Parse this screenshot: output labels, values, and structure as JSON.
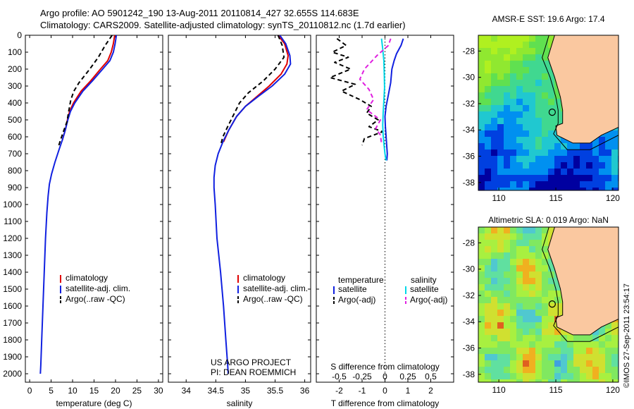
{
  "title_line1": "Argo profile: AO 5901242_190 13-Aug-2011 20110814_427 32.655S 114.683E",
  "title_line2": "Climatology: CARS2009. Satellite-adjusted climatology: synTS_20110812.nc (1.7d earlier)",
  "project_line1": "US ARGO PROJECT",
  "project_line2": "PI: DEAN ROEMMICH",
  "footer_stamp": "©IMOS 27-Sep-2011 23:54:17",
  "colors": {
    "climatology": "#e00000",
    "satellite": "#1020e0",
    "argo": "#000000",
    "salinity_sat": "#00d8e8",
    "salinity_argo": "#e020e0",
    "land": "#fac8a0"
  },
  "chart_data": [
    {
      "type": "line",
      "name": "temperature-profile",
      "xlabel": "temperature (deg C)",
      "xlim": [
        -1,
        31
      ],
      "ylim": [
        2050,
        0
      ],
      "x_ticks": [
        0,
        5,
        10,
        15,
        20,
        25,
        30
      ],
      "y_ticks": [
        0,
        100,
        200,
        300,
        400,
        500,
        600,
        700,
        800,
        900,
        1000,
        1100,
        1200,
        1300,
        1400,
        1500,
        1600,
        1700,
        1800,
        1900,
        2000
      ],
      "legend": [
        "climatology",
        "satellite-adj. clim.",
        "Argo(..raw -QC)"
      ],
      "series": [
        {
          "name": "climatology",
          "color": "#e00000",
          "dash": false,
          "points": [
            [
              19.8,
              0
            ],
            [
              19.5,
              50
            ],
            [
              19.0,
              100
            ],
            [
              18.2,
              150
            ],
            [
              16.5,
              200
            ],
            [
              14.2,
              270
            ],
            [
              12.0,
              330
            ],
            [
              10.2,
              400
            ],
            [
              9.3,
              450
            ],
            [
              8.8,
              500
            ],
            [
              8.3,
              560
            ],
            [
              7.6,
              620
            ]
          ]
        },
        {
          "name": "satellite-adj. clim.",
          "color": "#1020e0",
          "dash": false,
          "points": [
            [
              20.2,
              0
            ],
            [
              19.9,
              50
            ],
            [
              19.5,
              100
            ],
            [
              18.7,
              150
            ],
            [
              17.0,
              200
            ],
            [
              14.6,
              270
            ],
            [
              12.4,
              330
            ],
            [
              10.5,
              400
            ],
            [
              9.5,
              450
            ],
            [
              8.9,
              500
            ],
            [
              8.3,
              560
            ],
            [
              7.6,
              620
            ],
            [
              6.8,
              680
            ],
            [
              5.9,
              750
            ],
            [
              5.1,
              820
            ],
            [
              4.6,
              880
            ],
            [
              4.3,
              950
            ],
            [
              4.0,
              1050
            ],
            [
              3.7,
              1200
            ],
            [
              3.4,
              1400
            ],
            [
              3.1,
              1600
            ],
            [
              2.8,
              1800
            ],
            [
              2.6,
              1950
            ],
            [
              2.5,
              2000
            ]
          ]
        },
        {
          "name": "Argo(..raw -QC)",
          "color": "#000000",
          "dash": true,
          "points": [
            [
              19.2,
              0
            ],
            [
              17.6,
              60
            ],
            [
              16.0,
              130
            ],
            [
              14.0,
              200
            ],
            [
              11.5,
              280
            ],
            [
              10.3,
              330
            ],
            [
              9.6,
              380
            ],
            [
              9.1,
              450
            ],
            [
              8.7,
              510
            ],
            [
              8.0,
              560
            ],
            [
              7.3,
              610
            ],
            [
              6.8,
              650
            ]
          ]
        }
      ]
    },
    {
      "type": "line",
      "name": "salinity-profile",
      "xlabel": "salinity",
      "xlim": [
        33.7,
        36.1
      ],
      "ylim": [
        2050,
        0
      ],
      "x_ticks": [
        34,
        34.5,
        35,
        35.5,
        36
      ],
      "x_tick_labels": [
        "34",
        "34.5",
        "35",
        "35.5",
        "36"
      ],
      "legend": [
        "climatology",
        "satellite-adj. clim.",
        "Argo(..raw -QC)"
      ],
      "series": [
        {
          "name": "climatology",
          "color": "#e00000",
          "dash": false,
          "points": [
            [
              35.55,
              0
            ],
            [
              35.66,
              50
            ],
            [
              35.72,
              120
            ],
            [
              35.7,
              170
            ],
            [
              35.6,
              230
            ],
            [
              35.4,
              300
            ],
            [
              35.2,
              360
            ],
            [
              35.0,
              420
            ],
            [
              34.85,
              480
            ],
            [
              34.72,
              560
            ],
            [
              34.63,
              630
            ]
          ]
        },
        {
          "name": "satellite-adj. clim.",
          "color": "#1020e0",
          "dash": false,
          "points": [
            [
              35.58,
              0
            ],
            [
              35.68,
              50
            ],
            [
              35.75,
              120
            ],
            [
              35.76,
              170
            ],
            [
              35.66,
              230
            ],
            [
              35.45,
              300
            ],
            [
              35.22,
              360
            ],
            [
              35.0,
              420
            ],
            [
              34.85,
              480
            ],
            [
              34.72,
              560
            ],
            [
              34.62,
              630
            ],
            [
              34.54,
              700
            ],
            [
              34.49,
              770
            ],
            [
              34.47,
              840
            ],
            [
              34.47,
              900
            ],
            [
              34.49,
              1000
            ],
            [
              34.52,
              1200
            ],
            [
              34.58,
              1400
            ],
            [
              34.63,
              1600
            ],
            [
              34.67,
              1800
            ],
            [
              34.7,
              1950
            ],
            [
              34.71,
              2000
            ]
          ]
        },
        {
          "name": "Argo(..raw -QC)",
          "color": "#000000",
          "dash": true,
          "points": [
            [
              35.55,
              0
            ],
            [
              35.62,
              60
            ],
            [
              35.65,
              130
            ],
            [
              35.5,
              200
            ],
            [
              35.3,
              270
            ],
            [
              35.05,
              340
            ],
            [
              34.9,
              400
            ],
            [
              34.8,
              470
            ],
            [
              34.7,
              540
            ],
            [
              34.62,
              600
            ],
            [
              34.58,
              650
            ]
          ]
        }
      ]
    },
    {
      "type": "line",
      "name": "difference-profile",
      "xlabel": "T difference from climatology",
      "xlabel_top": "S difference from climatology",
      "xlim": [
        -3.0,
        3.0
      ],
      "ylim": [
        2050,
        0
      ],
      "x_ticks": [
        -2,
        -1,
        0,
        1,
        2
      ],
      "x_tick_labels": [
        "-2",
        "-1",
        "0",
        "1",
        "2"
      ],
      "x_ticks_top": [
        -0.5,
        -0.25,
        0,
        0.25,
        0.5
      ],
      "x_tick_labels_top": [
        "-0.5",
        "-0.25",
        "0",
        "0.25",
        "0.5"
      ],
      "legend_titles": [
        "temperature",
        "salinity"
      ],
      "legend": [
        "satellite",
        "Argo(-adj)",
        "satellite",
        "Argo(-adj)"
      ],
      "series": [
        {
          "name": "satellite",
          "group": "temperature",
          "color": "#1020e0",
          "dash": false,
          "points": [
            [
              0.8,
              20
            ],
            [
              0.7,
              60
            ],
            [
              0.5,
              110
            ],
            [
              0.4,
              150
            ],
            [
              0.3,
              200
            ],
            [
              0.25,
              280
            ],
            [
              0.15,
              350
            ],
            [
              0.05,
              420
            ],
            [
              0.0,
              480
            ],
            [
              0.02,
              540
            ],
            [
              0.05,
              600
            ],
            [
              0.08,
              660
            ],
            [
              0.1,
              700
            ],
            [
              0.08,
              740
            ]
          ]
        },
        {
          "name": "Argo(-adj)",
          "group": "temperature",
          "color": "#000000",
          "dash": true,
          "points": [
            [
              -2.1,
              20
            ],
            [
              -1.7,
              60
            ],
            [
              -2.3,
              100
            ],
            [
              -1.6,
              130
            ],
            [
              -2.2,
              160
            ],
            [
              -1.5,
              200
            ],
            [
              -2.4,
              250
            ],
            [
              -1.3,
              290
            ],
            [
              -1.9,
              330
            ],
            [
              -1.1,
              380
            ],
            [
              -0.6,
              420
            ],
            [
              -0.8,
              460
            ],
            [
              -0.3,
              500
            ],
            [
              -0.7,
              540
            ],
            [
              -0.1,
              570
            ],
            [
              -0.9,
              610
            ],
            [
              -1.0,
              650
            ]
          ]
        },
        {
          "name": "satellite",
          "group": "salinity",
          "color": "#00d8e8",
          "dash": false,
          "points": [
            [
              -0.15,
              20
            ],
            [
              -0.1,
              80
            ],
            [
              -0.05,
              150
            ],
            [
              -0.03,
              230
            ],
            [
              -0.02,
              310
            ],
            [
              -0.05,
              390
            ],
            [
              -0.08,
              460
            ],
            [
              -0.1,
              530
            ],
            [
              -0.08,
              590
            ],
            [
              -0.04,
              650
            ],
            [
              0.0,
              700
            ],
            [
              0.05,
              740
            ]
          ]
        },
        {
          "name": "Argo(-adj)",
          "group": "salinity",
          "color": "#e020e0",
          "dash": true,
          "points": [
            [
              0.25,
              20
            ],
            [
              0.15,
              60
            ],
            [
              -0.35,
              120
            ],
            [
              -0.9,
              200
            ],
            [
              -1.1,
              260
            ],
            [
              -0.7,
              320
            ],
            [
              -0.5,
              380
            ],
            [
              -0.8,
              440
            ],
            [
              -0.2,
              500
            ],
            [
              -0.4,
              550
            ],
            [
              -0.2,
              590
            ],
            [
              -0.15,
              640
            ]
          ]
        }
      ]
    },
    {
      "type": "heatmap",
      "name": "sst-map",
      "title": "AMSR-E SST: 19.6 Argo: 17.4",
      "xlim": [
        108.2,
        120.5
      ],
      "ylim": [
        -38.6,
        -26.8
      ],
      "x_ticks": [
        110,
        115,
        120
      ],
      "x_tick_labels": [
        "110",
        "115",
        "120"
      ],
      "y_ticks": [
        -28,
        -30,
        -32,
        -34,
        -36,
        -38
      ],
      "y_tick_labels": [
        "-28",
        "-30",
        "-32",
        "-34",
        "-36",
        "-38"
      ],
      "float_position": [
        114.683,
        -32.655
      ]
    },
    {
      "type": "heatmap",
      "name": "sla-map",
      "title": "Altimetric SLA: 0.019 Argo: NaN",
      "xlim": [
        108.2,
        120.5
      ],
      "ylim": [
        -38.6,
        -26.8
      ],
      "x_ticks": [
        110,
        115,
        120
      ],
      "x_tick_labels": [
        "110",
        "115",
        "120"
      ],
      "y_ticks": [
        -28,
        -30,
        -32,
        -34,
        -36,
        -38
      ],
      "y_tick_labels": [
        "-28",
        "-30",
        "-32",
        "-34",
        "-36",
        "-38"
      ],
      "float_position": [
        114.683,
        -32.655
      ]
    }
  ]
}
